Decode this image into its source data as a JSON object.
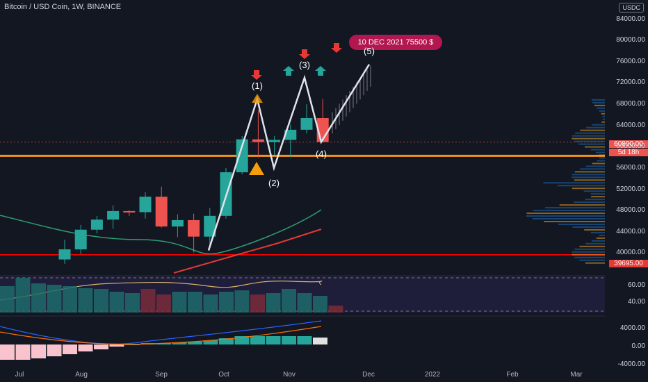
{
  "header": {
    "title": "Bitcoin / USD Coin, 1W, BINANCE",
    "currency": "USDC"
  },
  "annotation": {
    "label": "10 DEC 2021 75500 $"
  },
  "waves": [
    "(1)",
    "(2)",
    "(3)",
    "(4)",
    "(5)"
  ],
  "price_tags": {
    "last_price": "60890.00",
    "countdown": "5d 18h",
    "support": "39695.00"
  },
  "time_axis": [
    "Jul",
    "Aug",
    "Sep",
    "Oct",
    "Nov",
    "Dec",
    "2022",
    "Feb",
    "Mar"
  ],
  "colors": {
    "background": "#131722",
    "bull": "#26a69a",
    "bear": "#ef5350",
    "support_line": "#ff0000",
    "resistance_line": "#f7931a",
    "ema_fast": "#2e9e72",
    "ema_slow": "#e53935",
    "badge": "#b2184f",
    "arrow_up": "#26a69a",
    "arrow_down": "#e53935",
    "warning": "#f59e0b"
  },
  "chart_data": [
    {
      "type": "candlestick",
      "title": "Bitcoin / USD Coin, 1W, BINANCE",
      "y_axis_ticks": [
        "84000.00",
        "80000.00",
        "76000.00",
        "72000.00",
        "68000.00",
        "64000.00",
        "60000.00",
        "56000.00",
        "52000.00",
        "48000.00",
        "44000.00",
        "40000.00"
      ],
      "ylim": [
        36000,
        85000
      ],
      "x_ticks": [
        "Jul",
        "Aug",
        "Sep",
        "Oct",
        "Nov",
        "Dec",
        "2022",
        "Feb",
        "Mar"
      ],
      "candles": [
        {
          "x": "Jul 19",
          "open": 38800,
          "high": 42500,
          "low": 38000,
          "close": 40700
        },
        {
          "x": "Jul 26",
          "open": 40700,
          "high": 45300,
          "low": 39800,
          "close": 44400
        },
        {
          "x": "Aug 02",
          "open": 44400,
          "high": 47000,
          "low": 43700,
          "close": 46300
        },
        {
          "x": "Aug 09",
          "open": 46300,
          "high": 49000,
          "low": 44600,
          "close": 47900
        },
        {
          "x": "Aug 16",
          "open": 47900,
          "high": 48100,
          "low": 47000,
          "close": 47700
        },
        {
          "x": "Aug 23",
          "open": 47700,
          "high": 51500,
          "low": 46500,
          "close": 50600
        },
        {
          "x": "Aug 30",
          "open": 50600,
          "high": 52500,
          "low": 44800,
          "close": 45000
        },
        {
          "x": "Sep 06",
          "open": 45000,
          "high": 47300,
          "low": 43000,
          "close": 46200
        },
        {
          "x": "Sep 13",
          "open": 46200,
          "high": 47400,
          "low": 40100,
          "close": 43100
        },
        {
          "x": "Sep 20",
          "open": 43100,
          "high": 48500,
          "low": 41000,
          "close": 47000
        },
        {
          "x": "Sep 27",
          "open": 47000,
          "high": 56000,
          "low": 46500,
          "close": 55200
        },
        {
          "x": "Oct 04",
          "open": 55200,
          "high": 62000,
          "low": 54800,
          "close": 61400
        },
        {
          "x": "Oct 11",
          "open": 61400,
          "high": 66900,
          "low": 58000,
          "close": 60900
        },
        {
          "x": "Oct 18",
          "open": 60900,
          "high": 62000,
          "low": 58500,
          "close": 61300
        },
        {
          "x": "Oct 25",
          "open": 61300,
          "high": 64200,
          "low": 58000,
          "close": 63200
        },
        {
          "x": "Nov 01",
          "open": 63200,
          "high": 68000,
          "low": 62500,
          "close": 65400
        },
        {
          "x": "Nov 08",
          "open": 65400,
          "high": 69000,
          "low": 60900,
          "close": 60900
        }
      ],
      "wave_points": [
        {
          "label": "(1)",
          "x": "Oct 20",
          "y": 69000
        },
        {
          "label": "(2)",
          "x": "Oct 28",
          "y": 56000
        },
        {
          "label": "(3)",
          "x": "Nov 10",
          "y": 73000
        },
        {
          "label": "(4)",
          "x": "Nov 17",
          "y": 60900
        },
        {
          "label": "(5)",
          "x": "Dec 10",
          "y": 75500
        }
      ],
      "horizontal_levels": [
        {
          "y": 58300,
          "label": ""
        },
        {
          "y": 39695,
          "label": "39695.00"
        }
      ],
      "last_price": 60890
    },
    {
      "type": "line",
      "title": "",
      "y_axis_ticks": [
        "60.00",
        "40.00"
      ],
      "series": []
    },
    {
      "type": "bar",
      "title": "",
      "y_axis_ticks": [
        "4000.00",
        "0.00",
        "-4000.00"
      ],
      "series": []
    }
  ]
}
